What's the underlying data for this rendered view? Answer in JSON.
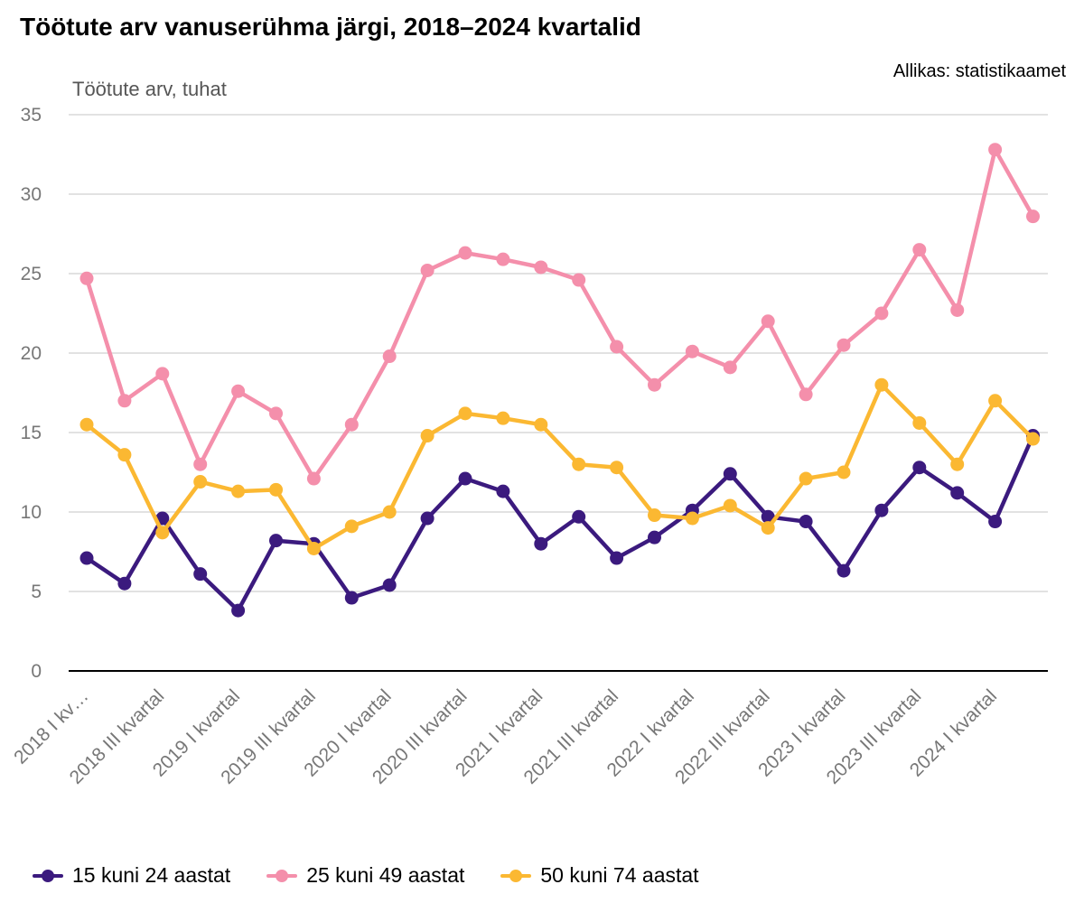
{
  "chart_data": {
    "type": "line",
    "title": "Töötute arv vanuserühma järgi, 2018–2024 kvartalid",
    "source": "Allikas: statistikaamet",
    "ylabel": "Töötute arv, tuhat",
    "xlabel": "",
    "ylim": [
      0,
      35
    ],
    "yticks": [
      0,
      5,
      10,
      15,
      20,
      25,
      30,
      35
    ],
    "grid": true,
    "legend_position": "bottom-left",
    "x_tick_labels": [
      "2018 I kv…",
      "2018 III kvartal",
      "2019 I kvartal",
      "2019 III kvartal",
      "2020 I kvartal",
      "2020 III kvartal",
      "2021 I kvartal",
      "2021 III kvartal",
      "2022 I kvartal",
      "2022 III kvartal",
      "2023 I kvartal",
      "2023 III kvartal",
      "2024 I kvartal"
    ],
    "categories": [
      "2018 I kvartal",
      "2018 II kvartal",
      "2018 III kvartal",
      "2018 IV kvartal",
      "2019 I kvartal",
      "2019 II kvartal",
      "2019 III kvartal",
      "2019 IV kvartal",
      "2020 I kvartal",
      "2020 II kvartal",
      "2020 III kvartal",
      "2020 IV kvartal",
      "2021 I kvartal",
      "2021 II kvartal",
      "2021 III kvartal",
      "2021 IV kvartal",
      "2022 I kvartal",
      "2022 II kvartal",
      "2022 III kvartal",
      "2022 IV kvartal",
      "2023 I kvartal",
      "2023 II kvartal",
      "2023 III kvartal",
      "2023 IV kvartal",
      "2024 I kvartal",
      "2024 II kvartal"
    ],
    "series": [
      {
        "name": "15 kuni 24 aastat",
        "color": "#3b1a7e",
        "values": [
          7.1,
          5.5,
          9.6,
          6.1,
          3.8,
          8.2,
          8.0,
          4.6,
          5.4,
          9.6,
          12.1,
          11.3,
          8.0,
          9.7,
          7.1,
          8.4,
          10.1,
          12.4,
          9.7,
          9.4,
          6.3,
          10.1,
          12.8,
          11.2,
          9.4,
          14.8
        ]
      },
      {
        "name": "25 kuni 49 aastat",
        "color": "#f48fab",
        "values": [
          24.7,
          17.0,
          18.7,
          13.0,
          17.6,
          16.2,
          12.1,
          15.5,
          19.8,
          25.2,
          26.3,
          25.9,
          25.4,
          24.6,
          20.4,
          18.0,
          20.1,
          19.1,
          22.0,
          17.4,
          20.5,
          22.5,
          26.5,
          22.7,
          32.8,
          28.6
        ]
      },
      {
        "name": "50 kuni 74 aastat",
        "color": "#fbb832",
        "values": [
          15.5,
          13.6,
          8.7,
          11.9,
          11.3,
          11.4,
          7.7,
          9.1,
          10.0,
          14.8,
          16.2,
          15.9,
          15.5,
          13.0,
          12.8,
          9.8,
          9.6,
          10.4,
          9.0,
          12.1,
          12.5,
          18.0,
          15.6,
          13.0,
          17.0,
          14.6
        ]
      }
    ]
  }
}
